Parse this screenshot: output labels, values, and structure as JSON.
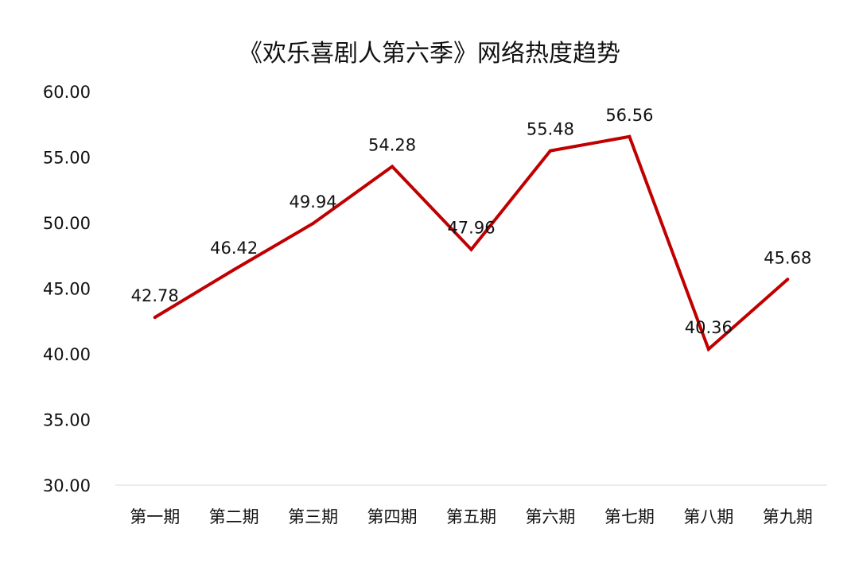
{
  "chart_data": {
    "type": "line",
    "title": "《欢乐喜剧人第六季》网络热度趋势",
    "categories": [
      "第一期",
      "第二期",
      "第三期",
      "第四期",
      "第五期",
      "第六期",
      "第七期",
      "第八期",
      "第九期"
    ],
    "series": [
      {
        "values": [
          42.78,
          46.42,
          49.94,
          54.28,
          47.96,
          55.48,
          56.56,
          40.36,
          45.68
        ],
        "color": "#c00000"
      }
    ],
    "data_labels": [
      "42.78",
      "46.42",
      "49.94",
      "54.28",
      "47.96",
      "55.48",
      "56.56",
      "40.36",
      "45.68"
    ],
    "ylim": [
      30,
      60
    ],
    "y_ticks": [
      "30.00",
      "35.00",
      "40.00",
      "45.00",
      "50.00",
      "55.00",
      "60.00"
    ],
    "xlabel": "",
    "ylabel": "",
    "grid": false,
    "legend": "none"
  }
}
